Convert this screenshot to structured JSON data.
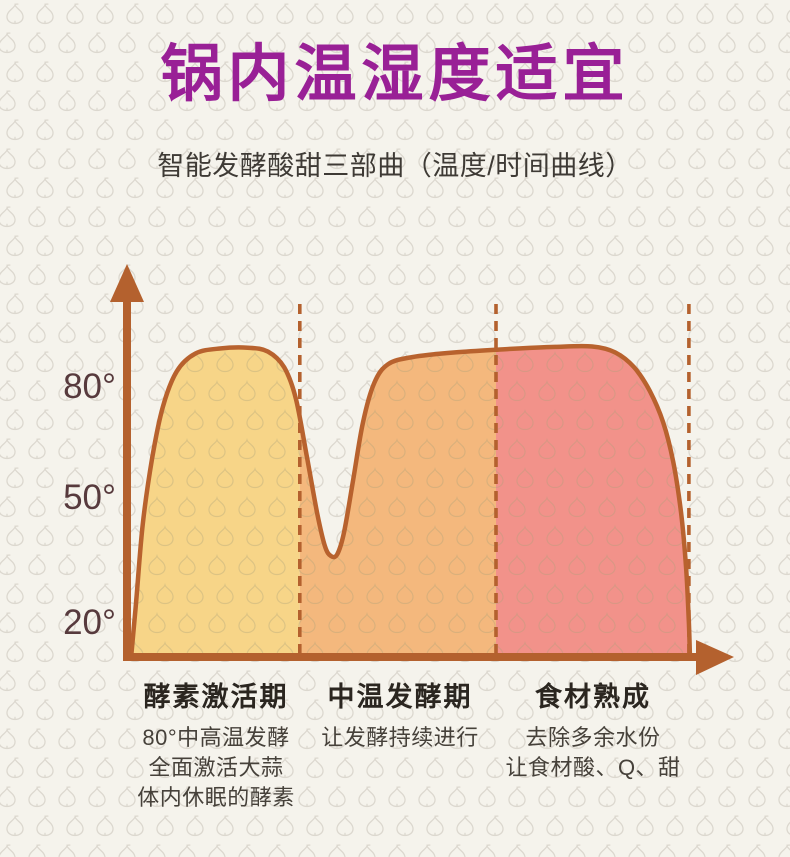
{
  "header": {
    "title": "锅内温湿度适宜",
    "title_color": "#992096",
    "subtitle": "智能发酵酸甜三部曲（温度/时间曲线）"
  },
  "colors": {
    "background": "#f5f3ec",
    "pattern_stroke": "#dcd8cf",
    "axis_label": "#573a3d",
    "phase_title_text": "#2b2620",
    "phase_desc_text": "#46413a"
  },
  "chart_data": {
    "type": "area",
    "title": "智能发酵酸甜三部曲（温度/时间曲线）",
    "xlabel": "",
    "ylabel": "",
    "y_ticks": [
      "80°",
      "50°",
      "20°"
    ],
    "y_tick_values": [
      80,
      50,
      20
    ],
    "ylim": [
      10,
      95
    ],
    "grid": false,
    "legend": false,
    "axis_color": "#b4612e",
    "divider_color": "#b4612e",
    "curve": {
      "stroke": "#b8622e",
      "points": [
        [
          0,
          11
        ],
        [
          0.009,
          25
        ],
        [
          0.021,
          45
        ],
        [
          0.038,
          62
        ],
        [
          0.057,
          75
        ],
        [
          0.082,
          84
        ],
        [
          0.115,
          88.5
        ],
        [
          0.159,
          89.8
        ],
        [
          0.209,
          90
        ],
        [
          0.245,
          89
        ],
        [
          0.274,
          85
        ],
        [
          0.295,
          77
        ],
        [
          0.315,
          62
        ],
        [
          0.333,
          48
        ],
        [
          0.347,
          39.5
        ],
        [
          0.358,
          37
        ],
        [
          0.369,
          37.5
        ],
        [
          0.381,
          43
        ],
        [
          0.397,
          56
        ],
        [
          0.415,
          71
        ],
        [
          0.435,
          81
        ],
        [
          0.46,
          85.8
        ],
        [
          0.503,
          87.6
        ],
        [
          0.58,
          88.8
        ],
        [
          0.669,
          89.6
        ],
        [
          0.759,
          90.2
        ],
        [
          0.825,
          90.3
        ],
        [
          0.866,
          88.8
        ],
        [
          0.9,
          85
        ],
        [
          0.928,
          79
        ],
        [
          0.952,
          71
        ],
        [
          0.97,
          61
        ],
        [
          0.984,
          48
        ],
        [
          0.993,
          34
        ],
        [
          0.998,
          20
        ],
        [
          1,
          11
        ]
      ]
    },
    "segments": [
      {
        "label": "酵素激活期",
        "x_start": 0,
        "x_end": 0.302,
        "fill": "#f7d588"
      },
      {
        "label": "中温发酵期",
        "x_start": 0.302,
        "x_end": 0.653,
        "fill": "#f4b87d"
      },
      {
        "label": "食材熟成",
        "x_start": 0.653,
        "x_end": 1,
        "fill": "#f2928a"
      }
    ],
    "dividers": [
      0.302,
      0.653,
      0.998
    ]
  },
  "phases": [
    {
      "title": "酵素激活期",
      "desc": [
        "80°中高温发酵",
        "全面激活大蒜",
        "体内休眠的酵素"
      ]
    },
    {
      "title": "中温发酵期",
      "desc": [
        "让发酵持续进行"
      ]
    },
    {
      "title": "食材熟成",
      "desc": [
        "去除多余水份",
        "让食材酸、Q、甜"
      ]
    }
  ]
}
